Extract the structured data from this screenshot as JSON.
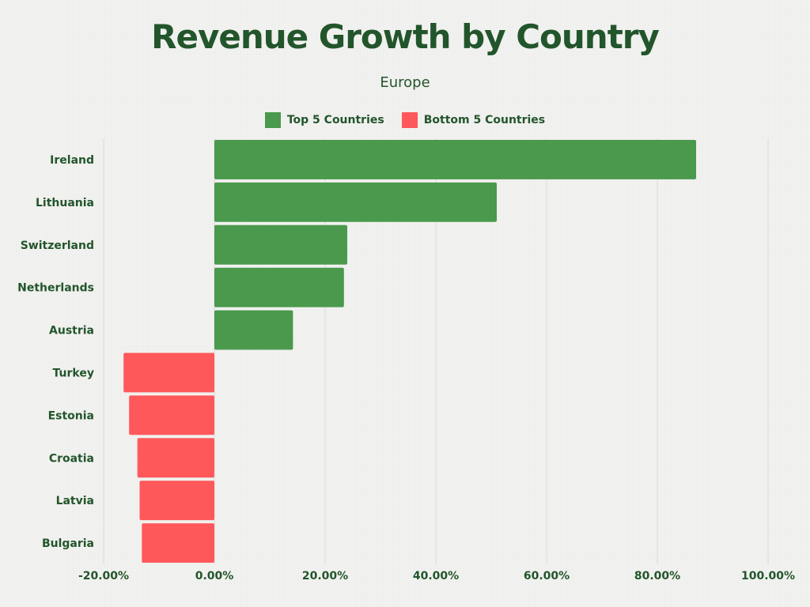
{
  "header": {
    "title": "Revenue Growth by Country",
    "subtitle": "Europe"
  },
  "legend": {
    "top_label": "Top 5 Countries",
    "bottom_label": "Bottom 5 Countries",
    "placement": "top-center"
  },
  "colors": {
    "top": "#4a994d",
    "bottom": "#ff585a",
    "text": "#22552b",
    "grid": "#d9d9d9"
  },
  "chart_data": {
    "type": "bar",
    "orientation": "horizontal",
    "title": "Revenue Growth by Country",
    "subtitle": "Europe",
    "categories": [
      "Ireland",
      "Lithuania",
      "Switzerland",
      "Netherlands",
      "Austria",
      "Turkey",
      "Estonia",
      "Croatia",
      "Latvia",
      "Bulgaria"
    ],
    "groups": [
      "top",
      "top",
      "top",
      "top",
      "top",
      "bottom",
      "bottom",
      "bottom",
      "bottom",
      "bottom"
    ],
    "values": [
      87.0,
      51.0,
      24.0,
      23.4,
      14.2,
      -16.4,
      -15.4,
      -13.9,
      -13.5,
      -13.1
    ],
    "xlim": [
      -20,
      100
    ],
    "xticks": [
      -20,
      0,
      20,
      40,
      60,
      80,
      100
    ],
    "xtick_labels": [
      "-20.00%",
      "0.00%",
      "20.00%",
      "40.00%",
      "60.00%",
      "80.00%",
      "100.00%"
    ],
    "grid": true,
    "legend_placement": "top-center"
  }
}
